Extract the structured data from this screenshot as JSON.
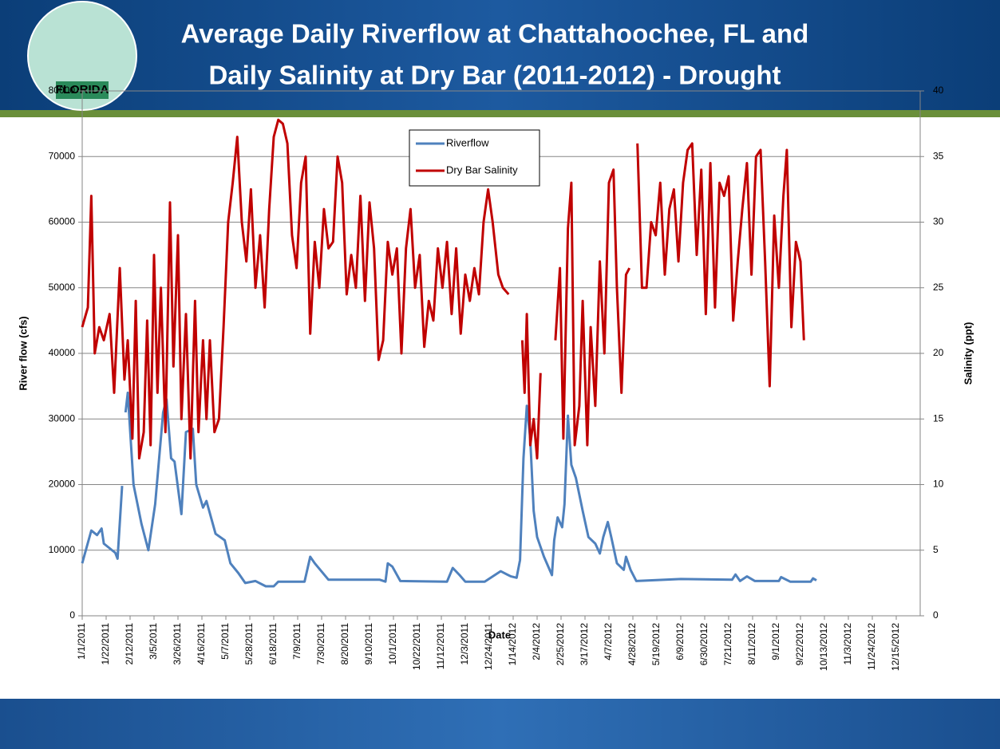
{
  "logo_text": "FLORIDA",
  "chart_data": {
    "type": "line",
    "title_lines": [
      "Average Daily Riverflow at Chattahoochee, FL and",
      "Daily Salinity at Dry Bar (2011-2012) - Drought"
    ],
    "xlabel": "Date",
    "ylabel": "River flow (cfs)",
    "y2label": "Salinity (ppt)",
    "xlim": [
      "2011-01-01",
      "2013-01-05"
    ],
    "xticks": [
      {
        "value": "2011-01-01",
        "label": "1/1/2011"
      },
      {
        "value": "2011-01-22",
        "label": "1/22/2011"
      },
      {
        "value": "2011-02-12",
        "label": "2/12/2011"
      },
      {
        "value": "2011-03-05",
        "label": "3/5/2011"
      },
      {
        "value": "2011-03-26",
        "label": "3/26/2011"
      },
      {
        "value": "2011-04-16",
        "label": "4/16/2011"
      },
      {
        "value": "2011-05-07",
        "label": "5/7/2011"
      },
      {
        "value": "2011-05-28",
        "label": "5/28/2011"
      },
      {
        "value": "2011-06-18",
        "label": "6/18/2011"
      },
      {
        "value": "2011-07-09",
        "label": "7/9/2011"
      },
      {
        "value": "2011-07-30",
        "label": "7/30/2011"
      },
      {
        "value": "2011-08-20",
        "label": "8/20/2011"
      },
      {
        "value": "2011-09-10",
        "label": "9/10/2011"
      },
      {
        "value": "2011-10-01",
        "label": "10/1/2011"
      },
      {
        "value": "2011-10-22",
        "label": "10/22/2011"
      },
      {
        "value": "2011-11-12",
        "label": "11/12/2011"
      },
      {
        "value": "2011-12-03",
        "label": "12/3/2011"
      },
      {
        "value": "2011-12-24",
        "label": "12/24/2011"
      },
      {
        "value": "2012-01-14",
        "label": "1/14/2012"
      },
      {
        "value": "2012-02-04",
        "label": "2/4/2012"
      },
      {
        "value": "2012-02-25",
        "label": "2/25/2012"
      },
      {
        "value": "2012-03-17",
        "label": "3/17/2012"
      },
      {
        "value": "2012-04-07",
        "label": "4/7/2012"
      },
      {
        "value": "2012-04-28",
        "label": "4/28/2012"
      },
      {
        "value": "2012-05-19",
        "label": "5/19/2012"
      },
      {
        "value": "2012-06-09",
        "label": "6/9/2012"
      },
      {
        "value": "2012-06-30",
        "label": "6/30/2012"
      },
      {
        "value": "2012-07-21",
        "label": "7/21/2012"
      },
      {
        "value": "2012-08-11",
        "label": "8/11/2012"
      },
      {
        "value": "2012-09-01",
        "label": "9/1/2012"
      },
      {
        "value": "2012-09-22",
        "label": "9/22/2012"
      },
      {
        "value": "2012-10-13",
        "label": "10/13/2012"
      },
      {
        "value": "2012-11-03",
        "label": "11/3/2012"
      },
      {
        "value": "2012-11-24",
        "label": "11/24/2012"
      },
      {
        "value": "2012-12-15",
        "label": "12/15/2012"
      }
    ],
    "ylim": [
      0,
      80000
    ],
    "yticks": [
      0,
      10000,
      20000,
      30000,
      40000,
      50000,
      60000,
      70000,
      80000
    ],
    "y2lim": [
      0,
      40
    ],
    "y2ticks": [
      0,
      5,
      10,
      15,
      20,
      25,
      30,
      35,
      40
    ],
    "grid": true,
    "legend": "top",
    "series": [
      {
        "name": "Riverflow",
        "color": "#4f81bd",
        "x": [
          "2011-01-01",
          "2011-01-05",
          "2011-01-09",
          "2011-01-14",
          "2011-01-18",
          "2011-01-20",
          "2011-01-30",
          "2011-02-01",
          "2011-02-05",
          "2011-02-06",
          "2011-02-08",
          "2011-02-10",
          "2011-02-15",
          "2011-02-22",
          "2011-02-28",
          "2011-03-06",
          "2011-03-13",
          "2011-03-16",
          "2011-03-20",
          "2011-03-23",
          "2011-03-29",
          "2011-04-02",
          "2011-04-08",
          "2011-04-11",
          "2011-04-17",
          "2011-04-20",
          "2011-04-28",
          "2011-05-06",
          "2011-05-11",
          "2011-05-18",
          "2011-05-24",
          "2011-06-02",
          "2011-06-11",
          "2011-06-18",
          "2011-06-22",
          "2011-07-15",
          "2011-07-20",
          "2011-07-24",
          "2011-08-05",
          "2011-09-19",
          "2011-09-24",
          "2011-09-26",
          "2011-09-30",
          "2011-10-07",
          "2011-11-17",
          "2011-11-22",
          "2011-11-28",
          "2011-12-03",
          "2011-12-20",
          "2012-01-03",
          "2012-01-12",
          "2012-01-17",
          "2012-01-20",
          "2012-01-23",
          "2012-01-26",
          "2012-01-29",
          "2012-02-01",
          "2012-02-04",
          "2012-02-10",
          "2012-02-17",
          "2012-02-19",
          "2012-02-22",
          "2012-02-26",
          "2012-02-28",
          "2012-03-02",
          "2012-03-05",
          "2012-03-09",
          "2012-03-15",
          "2012-03-20",
          "2012-03-26",
          "2012-03-30",
          "2012-04-02",
          "2012-04-06",
          "2012-04-09",
          "2012-04-14",
          "2012-04-20",
          "2012-04-22",
          "2012-04-26",
          "2012-05-01",
          "2012-06-09",
          "2012-07-24",
          "2012-07-27",
          "2012-07-31",
          "2012-08-06",
          "2012-08-13",
          "2012-09-03",
          "2012-09-05",
          "2012-09-13",
          "2012-10-01",
          "2012-10-03",
          "2012-10-06"
        ],
        "values": [
          8000,
          10500,
          13000,
          12300,
          13300,
          11000,
          9600,
          8700,
          19800,
          null,
          31000,
          34000,
          20000,
          14000,
          10000,
          17000,
          31000,
          33000,
          24000,
          23500,
          15500,
          28000,
          28500,
          20000,
          16500,
          17500,
          12500,
          11500,
          8000,
          6500,
          5000,
          5300,
          4500,
          4500,
          5200,
          5200,
          9000,
          8000,
          5500,
          5500,
          5200,
          8000,
          7500,
          5300,
          5200,
          7300,
          6200,
          5200,
          5200,
          6800,
          6000,
          5800,
          8500,
          24000,
          32000,
          27000,
          16000,
          12000,
          9000,
          6200,
          11500,
          15000,
          13500,
          17000,
          30500,
          23000,
          21000,
          16000,
          12000,
          11000,
          9500,
          12000,
          14300,
          12000,
          8000,
          7000,
          9000,
          7000,
          5300,
          5600,
          5500,
          6300,
          5300,
          6000,
          5300,
          5300,
          5900,
          5200,
          5200,
          5700,
          5400
        ]
      },
      {
        "name": "Dry Bar Salinity",
        "color": "#c00000",
        "axis": "y2",
        "x": [
          "2011-01-01",
          "2011-01-06",
          "2011-01-09",
          "2011-01-12",
          "2011-01-16",
          "2011-01-20",
          "2011-01-25",
          "2011-01-29",
          "2011-02-03",
          "2011-02-07",
          "2011-02-10",
          "2011-02-14",
          "2011-02-17",
          "2011-02-20",
          "2011-02-24",
          "2011-02-27",
          "2011-03-02",
          "2011-03-05",
          "2011-03-08",
          "2011-03-11",
          "2011-03-15",
          "2011-03-19",
          "2011-03-22",
          "2011-03-26",
          "2011-03-29",
          "2011-04-02",
          "2011-04-06",
          "2011-04-10",
          "2011-04-13",
          "2011-04-17",
          "2011-04-20",
          "2011-04-23",
          "2011-04-27",
          "2011-05-01",
          "2011-05-05",
          "2011-05-09",
          "2011-05-13",
          "2011-05-17",
          "2011-05-21",
          "2011-05-25",
          "2011-05-29",
          "2011-06-02",
          "2011-06-06",
          "2011-06-10",
          "2011-06-14",
          "2011-06-18",
          "2011-06-22",
          "2011-06-26",
          "2011-06-30",
          "2011-07-04",
          "2011-07-08",
          "2011-07-12",
          "2011-07-16",
          "2011-07-20",
          "2011-07-24",
          "2011-07-28",
          "2011-08-01",
          "2011-08-05",
          "2011-08-09",
          "2011-08-13",
          "2011-08-17",
          "2011-08-21",
          "2011-08-25",
          "2011-08-29",
          "2011-09-02",
          "2011-09-06",
          "2011-09-10",
          "2011-09-14",
          "2011-09-18",
          "2011-09-22",
          "2011-09-26",
          "2011-09-30",
          "2011-10-04",
          "2011-10-08",
          "2011-10-12",
          "2011-10-16",
          "2011-10-20",
          "2011-10-24",
          "2011-10-28",
          "2011-11-01",
          "2011-11-05",
          "2011-11-09",
          "2011-11-13",
          "2011-11-17",
          "2011-11-21",
          "2011-11-25",
          "2011-11-29",
          "2011-12-03",
          "2011-12-07",
          "2011-12-11",
          "2011-12-15",
          "2011-12-19",
          "2011-12-23",
          "2011-12-27",
          "2012-01-01",
          "2012-01-05",
          "2012-01-10",
          "2012-01-15",
          "2012-01-22",
          "2012-01-24",
          "2012-01-26",
          "2012-01-29",
          "2012-02-01",
          "2012-02-04",
          "2012-02-07",
          "2012-02-12",
          "2012-02-20",
          "2012-02-24",
          "2012-02-27",
          "2012-03-02",
          "2012-03-05",
          "2012-03-08",
          "2012-03-12",
          "2012-03-15",
          "2012-03-19",
          "2012-03-22",
          "2012-03-26",
          "2012-03-30",
          "2012-04-03",
          "2012-04-07",
          "2012-04-11",
          "2012-04-14",
          "2012-04-18",
          "2012-04-22",
          "2012-04-25",
          "2012-04-28",
          "2012-05-02",
          "2012-05-06",
          "2012-05-10",
          "2012-05-14",
          "2012-05-18",
          "2012-05-22",
          "2012-05-26",
          "2012-05-30",
          "2012-06-03",
          "2012-06-07",
          "2012-06-11",
          "2012-06-15",
          "2012-06-19",
          "2012-06-23",
          "2012-06-27",
          "2012-07-01",
          "2012-07-05",
          "2012-07-09",
          "2012-07-13",
          "2012-07-17",
          "2012-07-21",
          "2012-07-25",
          "2012-07-29",
          "2012-08-02",
          "2012-08-06",
          "2012-08-10",
          "2012-08-14",
          "2012-08-18",
          "2012-08-22",
          "2012-08-26",
          "2012-08-30",
          "2012-09-03",
          "2012-09-07",
          "2012-09-10",
          "2012-09-14",
          "2012-09-18",
          "2012-09-22",
          "2012-09-25"
        ],
        "values": [
          22,
          23.5,
          32,
          20,
          22,
          21,
          23,
          17,
          26.5,
          18,
          21,
          13.5,
          24,
          12,
          14,
          22.5,
          13,
          27.5,
          17,
          25,
          14,
          31.5,
          19,
          29,
          15,
          23,
          12,
          24,
          14,
          21,
          15,
          21,
          14,
          15,
          22,
          30,
          33,
          36.5,
          30,
          27,
          32.5,
          25,
          29,
          23.5,
          31,
          36.5,
          37.8,
          37.5,
          36,
          29,
          26.5,
          33,
          35,
          21.5,
          28.5,
          25,
          31,
          28,
          28.5,
          35,
          33,
          24.5,
          27.5,
          25,
          32,
          24,
          31.5,
          28,
          19.5,
          21,
          28.5,
          26,
          28,
          20,
          28,
          31,
          25,
          27.5,
          20.5,
          24,
          22.5,
          28,
          25,
          28.5,
          23,
          28,
          21.5,
          26,
          24,
          26.5,
          24.5,
          30,
          32.5,
          30,
          26,
          25,
          24.5,
          null,
          21,
          17,
          23,
          13,
          15,
          12,
          18.5,
          null,
          21,
          26.5,
          13.5,
          29.5,
          33,
          13,
          16,
          24,
          13,
          22,
          16,
          27,
          20,
          33,
          34,
          25,
          17,
          26,
          26.5,
          null,
          36,
          25,
          25,
          30,
          29,
          33,
          26,
          31,
          32.5,
          27,
          33,
          35.5,
          36,
          27.5,
          34,
          23,
          34.5,
          23.5,
          33,
          32,
          33.5,
          22.5,
          27,
          31,
          34.5,
          26,
          35,
          35.5,
          27,
          17.5,
          30.5,
          25,
          32,
          35.5,
          22,
          28.5,
          27,
          21
        ]
      }
    ]
  }
}
